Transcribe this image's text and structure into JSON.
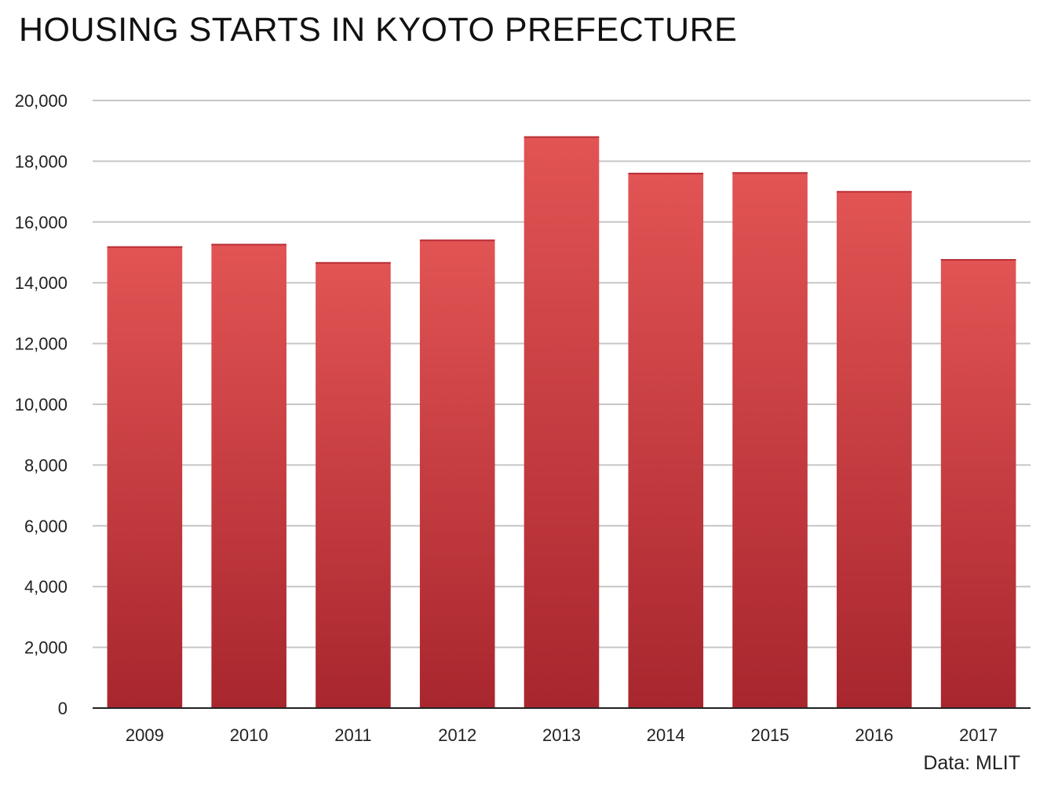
{
  "chart_data": {
    "type": "bar",
    "title": "HOUSING STARTS IN KYOTO PREFECTURE",
    "xlabel": "",
    "ylabel": "",
    "categories": [
      "2009",
      "2010",
      "2011",
      "2012",
      "2013",
      "2014",
      "2015",
      "2016",
      "2017"
    ],
    "values": [
      15200,
      15280,
      14680,
      15420,
      18820,
      17620,
      17640,
      17020,
      14780
    ],
    "ylim": [
      0,
      20000
    ],
    "yticks": [
      0,
      2000,
      4000,
      6000,
      8000,
      10000,
      12000,
      14000,
      16000,
      18000,
      20000
    ],
    "ytick_labels": [
      "0",
      "2,000",
      "4,000",
      "6,000",
      "8,000",
      "10,000",
      "12,000",
      "14,000",
      "16,000",
      "18,000",
      "20,000"
    ],
    "grid": true,
    "legend": "none",
    "bar_color_top": "#e25454",
    "bar_color_bottom": "#a8262e",
    "grid_color": "#c6c6c6",
    "axis_color": "#222222"
  },
  "source_note": "Data: MLIT"
}
